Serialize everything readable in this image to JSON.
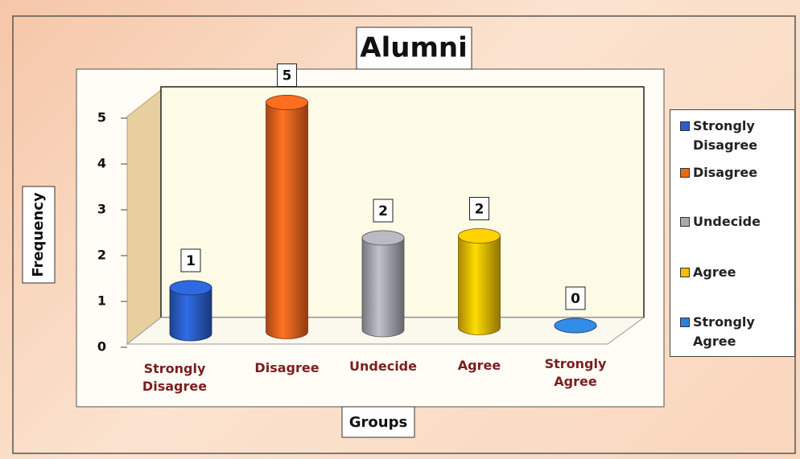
{
  "chart_data": {
    "type": "bar3d",
    "title": "Alumni",
    "categories": [
      "Strongly Disagree",
      "Disagree",
      "Undecide",
      "Agree",
      "Strongly Agree"
    ],
    "values": [
      1,
      5,
      2,
      2,
      0
    ],
    "colors": [
      "#2a5fc9",
      "#f0641e",
      "#a9a9b2",
      "#f2c000",
      "#2f7fd4"
    ],
    "ylim": [
      0,
      5
    ],
    "yticks": [
      0,
      1,
      2,
      3,
      4,
      5
    ],
    "y_label": "Frequency",
    "x_label": "Groups",
    "legend": "right"
  }
}
